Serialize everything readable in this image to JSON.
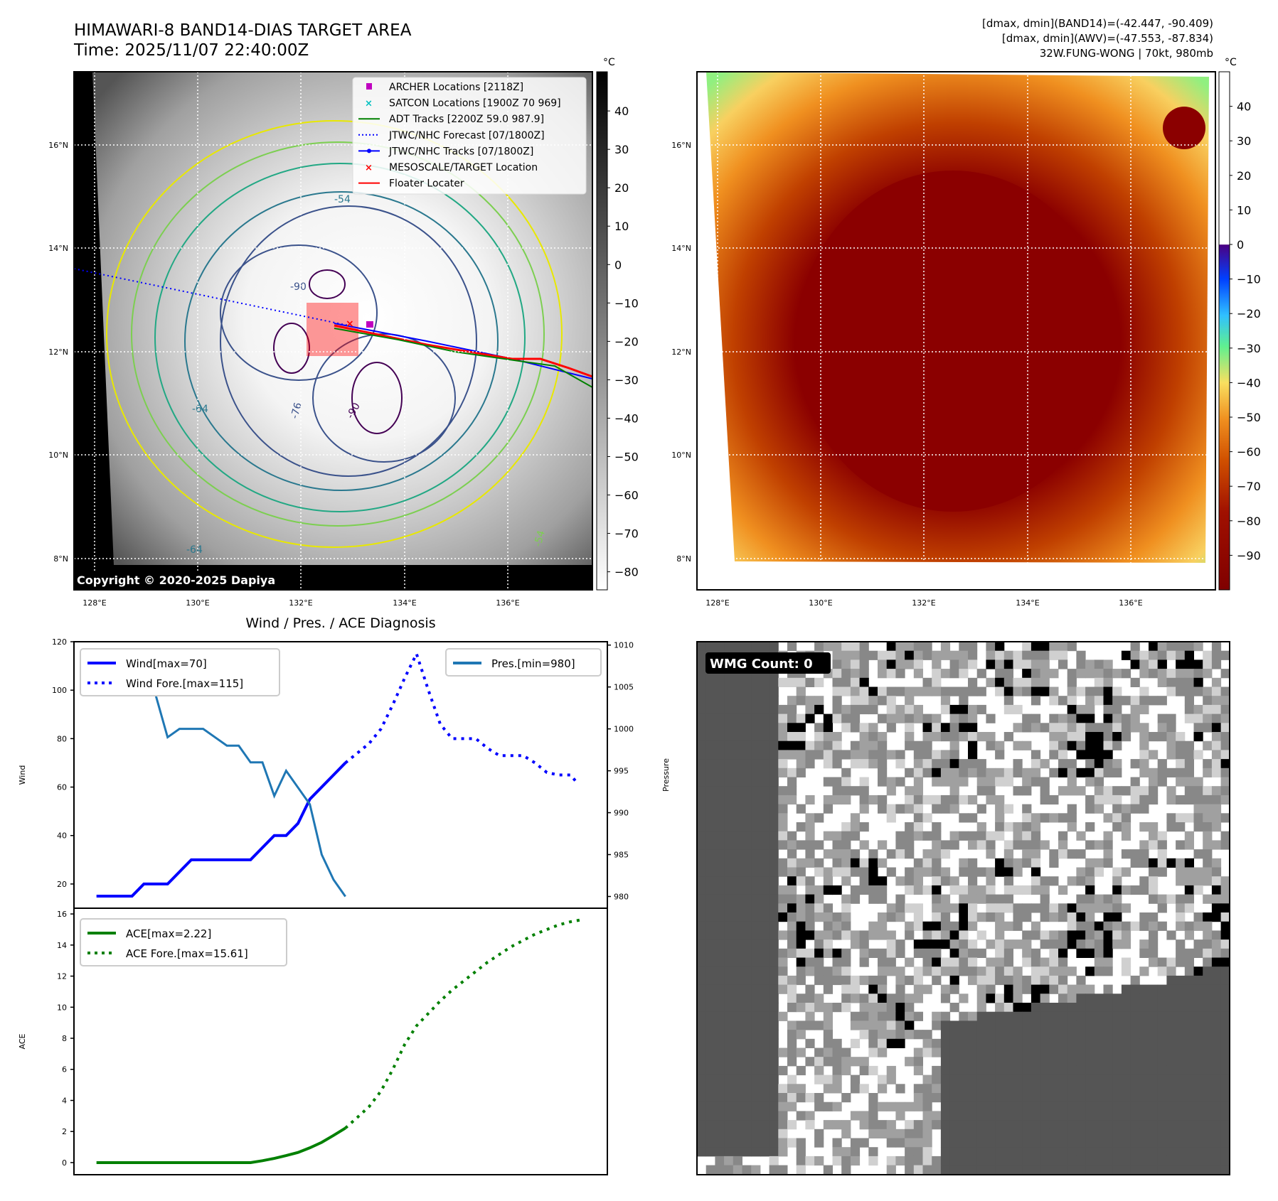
{
  "header": {
    "title": "HIMAWARI-8 BAND14-DIAS TARGET AREA",
    "time": "Time: 2025/11/07 22:40:00Z",
    "info_line1": "[dmax, dmin](BAND14)=(-42.447, -90.409)",
    "info_line2": "[dmax, dmin](AWV)=(-47.553, -87.834)",
    "info_line3": "32W.FUNG-WONG | 70kt, 980mb"
  },
  "map": {
    "lat_labels": [
      "16°N",
      "14°N",
      "12°N",
      "10°N",
      "8°N"
    ],
    "lon_labels": [
      "128°E",
      "130°E",
      "132°E",
      "134°E",
      "136°E"
    ],
    "copyright": "Copyright © 2020-2025 Dapiya",
    "contour_labels": [
      "-90",
      "-54",
      "-64",
      "-76",
      "-90",
      "-64",
      "-54"
    ],
    "legend": [
      {
        "label": "ARCHER Locations [2118Z]",
        "color": "#c000c0"
      },
      {
        "label": "SATCON Locations [1900Z 70 969]",
        "color": "#00c0c0"
      },
      {
        "label": "ADT Tracks [2200Z 59.0 987.9]",
        "color": "#008000"
      },
      {
        "label": "JTWC/NHC Forecast [07/1800Z]",
        "color": "#0000ff"
      },
      {
        "label": "JTWC/NHC Tracks [07/1800Z]",
        "color": "#0000ff"
      },
      {
        "label": "MESOSCALE/TARGET Location",
        "color": "#ff0000"
      },
      {
        "label": "Floater Locater",
        "color": "#ff0000"
      }
    ]
  },
  "colorbars": {
    "unit": "°C",
    "left_ticks": [
      "40",
      "30",
      "20",
      "10",
      "0",
      "−10",
      "−20",
      "−30",
      "−40",
      "−50",
      "−60",
      "−70",
      "−80"
    ],
    "right_ticks": [
      "40",
      "30",
      "20",
      "10",
      "0",
      "−10",
      "−20",
      "−30",
      "−40",
      "−50",
      "−60",
      "−70",
      "−80",
      "−90"
    ]
  },
  "wmg": {
    "label": "WMG Count: 0"
  },
  "chart_data": [
    {
      "type": "line",
      "title": "Wind / Pres. / ACE Diagnosis",
      "ylabel": "Wind",
      "ylabel_right": "Pressure",
      "xlim": [
        -1.9,
        43.1
      ],
      "ylim": [
        10,
        120
      ],
      "ylim_right": [
        978.6,
        1010.4
      ],
      "yticks": [
        "20",
        "40",
        "60",
        "80",
        "100",
        "120"
      ],
      "yticks_right": [
        "980",
        "985",
        "990",
        "995",
        "1000",
        "1005",
        "1010"
      ],
      "series": [
        {
          "name": "Wind[max=70]",
          "axis": "left",
          "color": "#0000ff",
          "style": "solid",
          "x": [
            0,
            1,
            2,
            3,
            4,
            5,
            6,
            7,
            8,
            9,
            10,
            11,
            12,
            13,
            14,
            15,
            16,
            17,
            18,
            19,
            20,
            21
          ],
          "values": [
            15,
            15,
            15,
            15,
            20,
            20,
            20,
            25,
            30,
            30,
            30,
            30,
            30,
            30,
            35,
            40,
            40,
            45,
            55,
            60,
            65,
            70
          ]
        },
        {
          "name": "Wind Fore.[max=115]",
          "axis": "left",
          "color": "#0000ff",
          "style": "dotted",
          "x": [
            21,
            22,
            23,
            24,
            25,
            26,
            27,
            28,
            29,
            30,
            31,
            32,
            33,
            34,
            35,
            36,
            37,
            38,
            39,
            40,
            40.5
          ],
          "values": [
            70,
            74,
            78,
            84,
            94,
            105,
            115,
            100,
            86,
            80,
            80,
            80,
            76,
            73,
            73,
            73,
            70,
            66,
            65,
            65,
            62
          ]
        },
        {
          "name": "Pres.[min=980]",
          "axis": "right",
          "color": "#1f77b4",
          "style": "solid",
          "x": [
            0,
            1,
            2,
            3,
            4,
            5,
            6,
            7,
            8,
            9,
            10,
            11,
            12,
            13,
            14,
            15,
            16,
            17,
            18,
            19,
            20,
            21
          ],
          "values": [
            1009,
            1006,
            1006,
            1006,
            1005,
            1004,
            999,
            1000,
            1000,
            1000,
            999,
            998,
            998,
            996,
            996,
            992,
            995,
            993,
            991,
            985,
            982,
            980
          ]
        }
      ]
    },
    {
      "type": "line",
      "ylabel": "ACE",
      "xlim": [
        -1.9,
        43.1
      ],
      "ylim": [
        -0.78,
        16.37
      ],
      "yticks": [
        "0",
        "2",
        "4",
        "6",
        "8",
        "10",
        "12",
        "14",
        "16"
      ],
      "series": [
        {
          "name": "ACE[max=2.22]",
          "color": "#008000",
          "style": "solid",
          "x": [
            0,
            1,
            2,
            3,
            4,
            5,
            6,
            7,
            8,
            9,
            10,
            11,
            12,
            13,
            14,
            15,
            16,
            17,
            18,
            19,
            20,
            21
          ],
          "values": [
            0,
            0,
            0,
            0,
            0,
            0,
            0,
            0,
            0,
            0,
            0,
            0,
            0,
            0,
            0.12,
            0.27,
            0.45,
            0.65,
            0.95,
            1.3,
            1.75,
            2.22
          ]
        },
        {
          "name": "ACE Fore.[max=15.61]",
          "color": "#008000",
          "style": "dotted",
          "x": [
            21,
            22,
            23,
            24,
            25,
            26,
            27,
            28,
            29,
            30,
            31,
            32,
            33,
            34,
            35,
            36,
            37,
            38,
            39,
            40,
            40.8
          ],
          "values": [
            2.22,
            2.9,
            3.6,
            4.6,
            6.0,
            7.6,
            8.8,
            9.6,
            10.4,
            11.1,
            11.7,
            12.3,
            12.9,
            13.4,
            13.9,
            14.3,
            14.7,
            15.0,
            15.3,
            15.5,
            15.61
          ]
        }
      ]
    }
  ]
}
